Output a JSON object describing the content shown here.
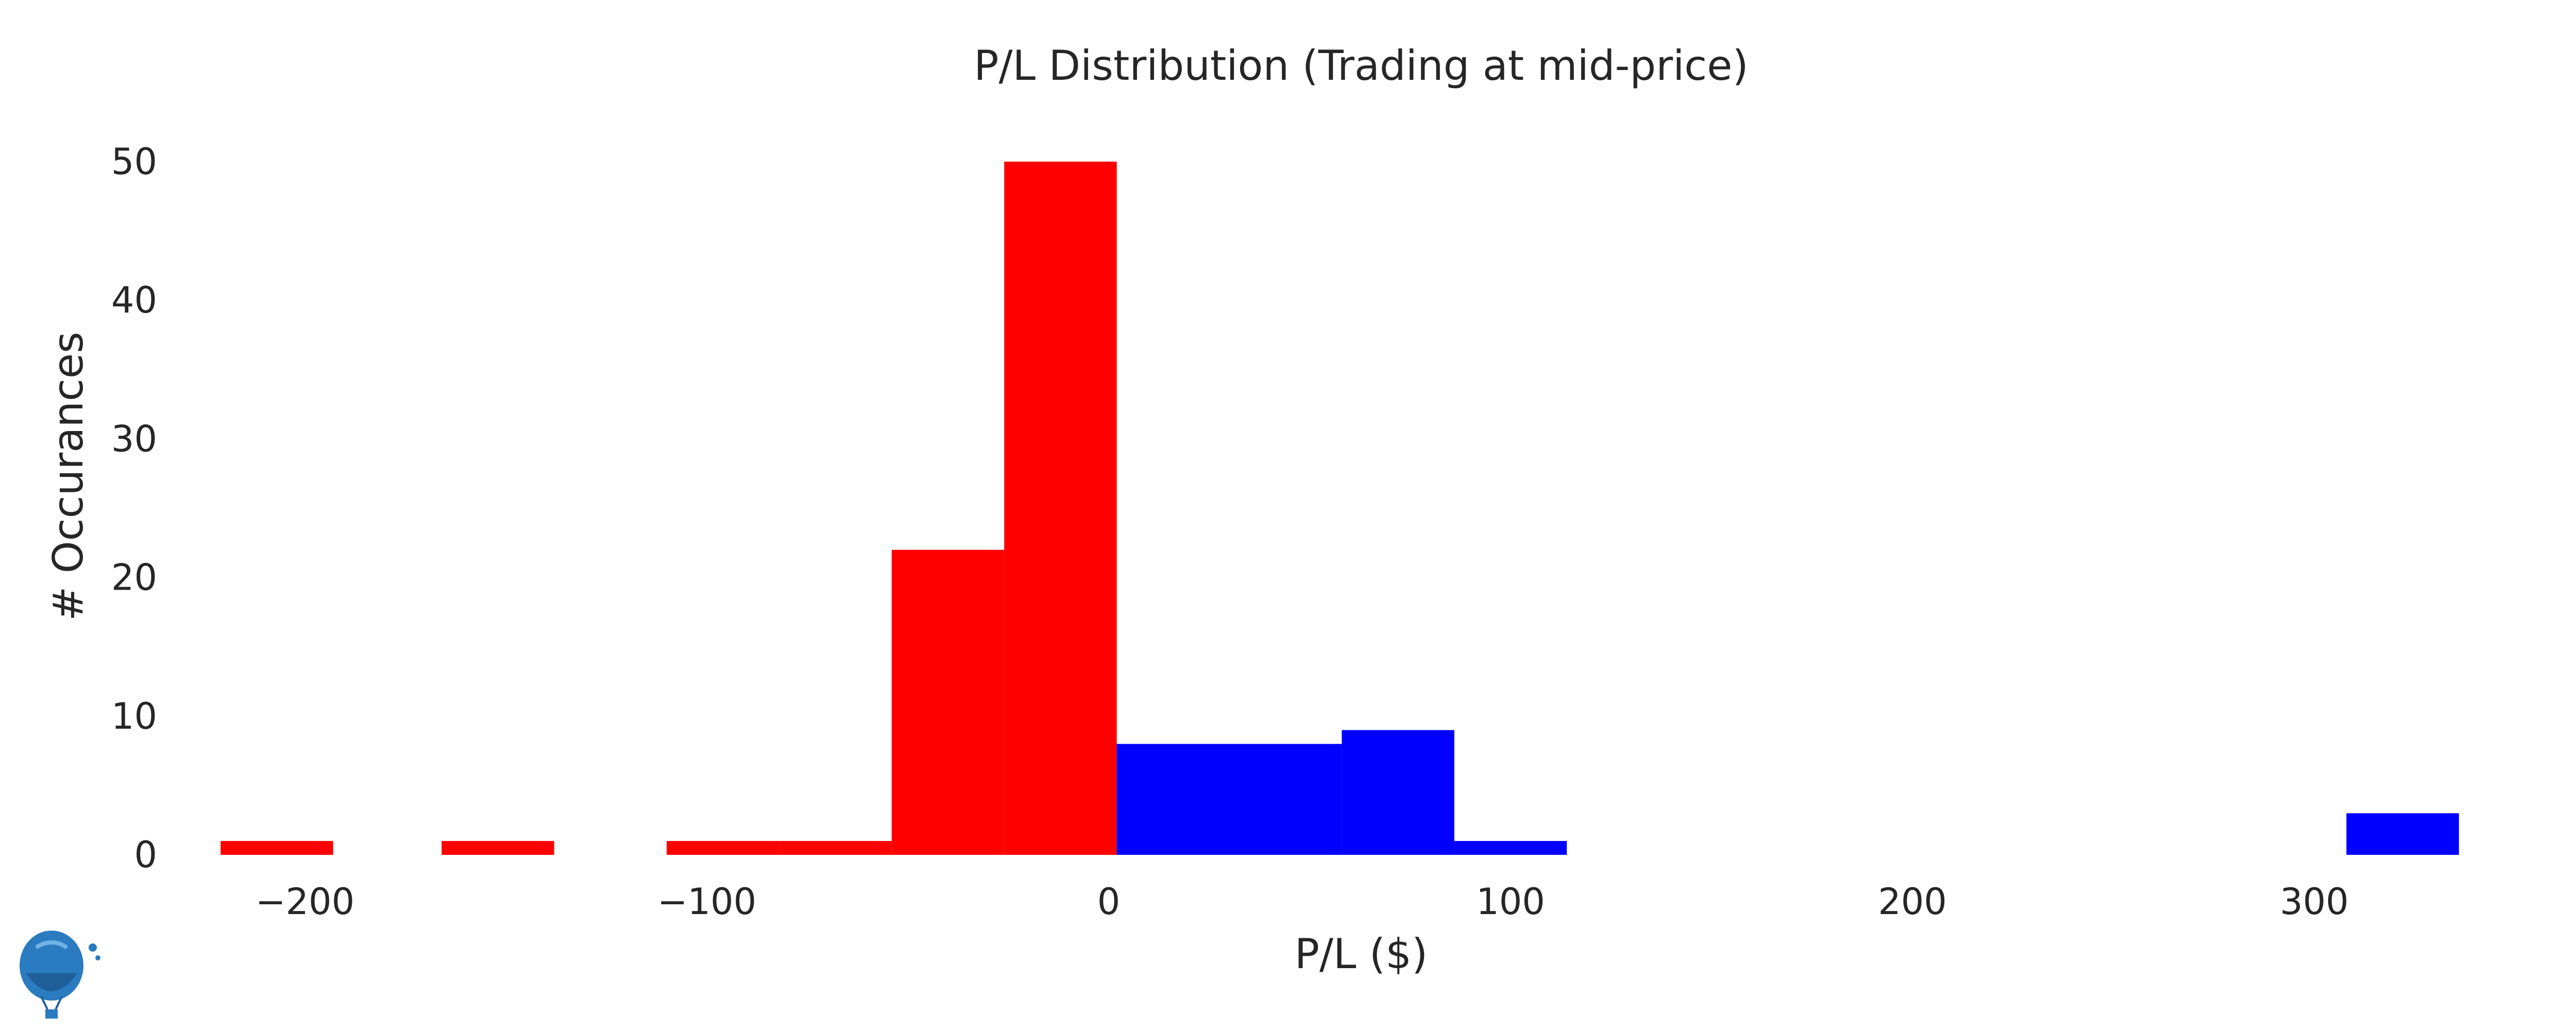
{
  "chart_data": {
    "type": "bar",
    "title": "P/L Distribution (Trading at mid-price)",
    "xlabel": "P/L ($)",
    "ylabel": "# Occurances",
    "xlim": [
      -240,
      360
    ],
    "ylim": [
      0,
      52
    ],
    "grid": false,
    "legend": "none",
    "x_ticks": [
      {
        "value": -200,
        "label": "−200"
      },
      {
        "value": -100,
        "label": "−100"
      },
      {
        "value": 0,
        "label": "0"
      },
      {
        "value": 100,
        "label": "100"
      },
      {
        "value": 200,
        "label": "200"
      },
      {
        "value": 300,
        "label": "300"
      }
    ],
    "y_ticks": [
      {
        "value": 0,
        "label": "0"
      },
      {
        "value": 10,
        "label": "10"
      },
      {
        "value": 20,
        "label": "20"
      },
      {
        "value": 30,
        "label": "30"
      },
      {
        "value": 40,
        "label": "40"
      },
      {
        "value": 50,
        "label": "50"
      }
    ],
    "series": [
      {
        "color": "#ff0000",
        "bins": [
          {
            "x0": -221,
            "x1": -193,
            "count": 1
          },
          {
            "x0": -166,
            "x1": -138,
            "count": 1
          },
          {
            "x0": -110,
            "x1": -82,
            "count": 1
          },
          {
            "x0": -82,
            "x1": -54,
            "count": 1
          },
          {
            "x0": -54,
            "x1": -26,
            "count": 22
          },
          {
            "x0": -26,
            "x1": 2,
            "count": 50
          }
        ]
      },
      {
        "color": "#0000ff",
        "bins": [
          {
            "x0": 2,
            "x1": 30,
            "count": 8
          },
          {
            "x0": 30,
            "x1": 58,
            "count": 8
          },
          {
            "x0": 58,
            "x1": 86,
            "count": 9
          },
          {
            "x0": 86,
            "x1": 114,
            "count": 1
          },
          {
            "x0": 308,
            "x1": 336,
            "count": 3
          }
        ]
      }
    ]
  },
  "logo": {
    "icon": "balloon-logo-icon",
    "color": "#2b7bc0"
  }
}
